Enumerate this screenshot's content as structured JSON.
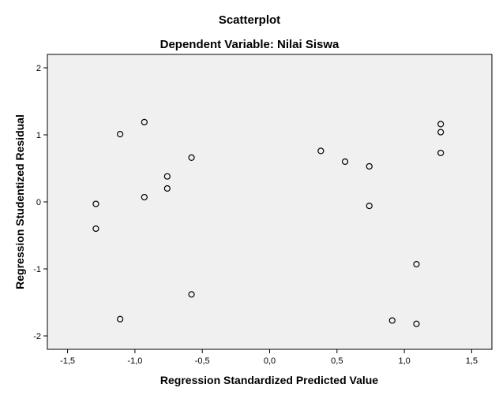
{
  "chart_data": {
    "type": "scatter",
    "title": "Scatterplot",
    "subtitle": "Dependent Variable: Nilai Siswa",
    "xlabel": "Regression Standardized Predicted Value",
    "ylabel": "Regression Studentized Residual",
    "xlim": [
      -1.65,
      1.65
    ],
    "ylim": [
      -2.2,
      2.2
    ],
    "x_ticks": [
      -1.5,
      -1.0,
      -0.5,
      0.0,
      0.5,
      1.0,
      1.5
    ],
    "x_tick_labels": [
      "-1,5",
      "-1,0",
      "-0,5",
      "0,0",
      "0,5",
      "1,0",
      "1,5"
    ],
    "y_ticks": [
      2,
      1,
      0,
      -1,
      -2
    ],
    "y_tick_labels": [
      "2",
      "1",
      "0",
      "-1",
      "-2"
    ],
    "grid": false,
    "background_color": "#f0f0f0",
    "marker": "hollow-circle",
    "points": [
      {
        "x": -1.29,
        "y": -0.03
      },
      {
        "x": -1.29,
        "y": -0.4
      },
      {
        "x": -1.11,
        "y": 1.01
      },
      {
        "x": -1.11,
        "y": -1.75
      },
      {
        "x": -0.93,
        "y": 1.19
      },
      {
        "x": -0.93,
        "y": 0.07
      },
      {
        "x": -0.76,
        "y": 0.38
      },
      {
        "x": -0.76,
        "y": 0.2
      },
      {
        "x": -0.58,
        "y": 0.66
      },
      {
        "x": -0.58,
        "y": -1.38
      },
      {
        "x": 0.38,
        "y": 0.76
      },
      {
        "x": 0.56,
        "y": 0.6
      },
      {
        "x": 0.74,
        "y": 0.53
      },
      {
        "x": 0.74,
        "y": -0.06
      },
      {
        "x": 0.91,
        "y": -1.77
      },
      {
        "x": 1.09,
        "y": -0.93
      },
      {
        "x": 1.09,
        "y": -1.82
      },
      {
        "x": 1.27,
        "y": 1.16
      },
      {
        "x": 1.27,
        "y": 1.04
      },
      {
        "x": 1.27,
        "y": 0.73
      }
    ]
  }
}
